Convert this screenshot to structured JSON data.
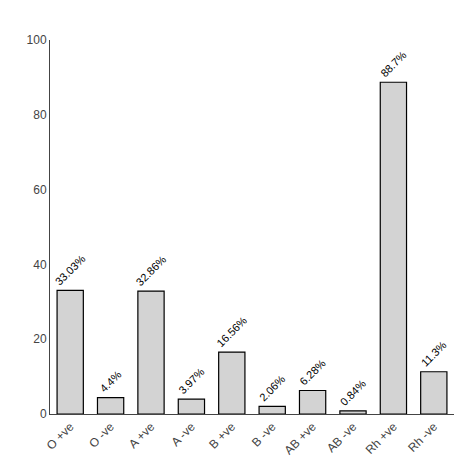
{
  "chart_data": {
    "type": "bar",
    "categories": [
      "O +ve",
      "O -ve",
      "A +ve",
      "A -ve",
      "B +ve",
      "B -ve",
      "AB +ve",
      "AB -ve",
      "Rh +ve",
      "Rh -ve"
    ],
    "values": [
      33.03,
      4.4,
      32.86,
      3.97,
      16.56,
      2.06,
      6.28,
      0.84,
      88.7,
      11.3
    ],
    "value_labels": [
      "33.03%",
      "4.4%",
      "32.86%",
      "3.97%",
      "16.56%",
      "2.06%",
      "6.28%",
      "0.84%",
      "88.7%",
      "11.3%"
    ],
    "data_labels": true,
    "color": "#d3d3d3",
    "ylim": [
      0,
      100
    ],
    "yticks": [
      0,
      20,
      40,
      60,
      80,
      100
    ],
    "grid": false
  }
}
